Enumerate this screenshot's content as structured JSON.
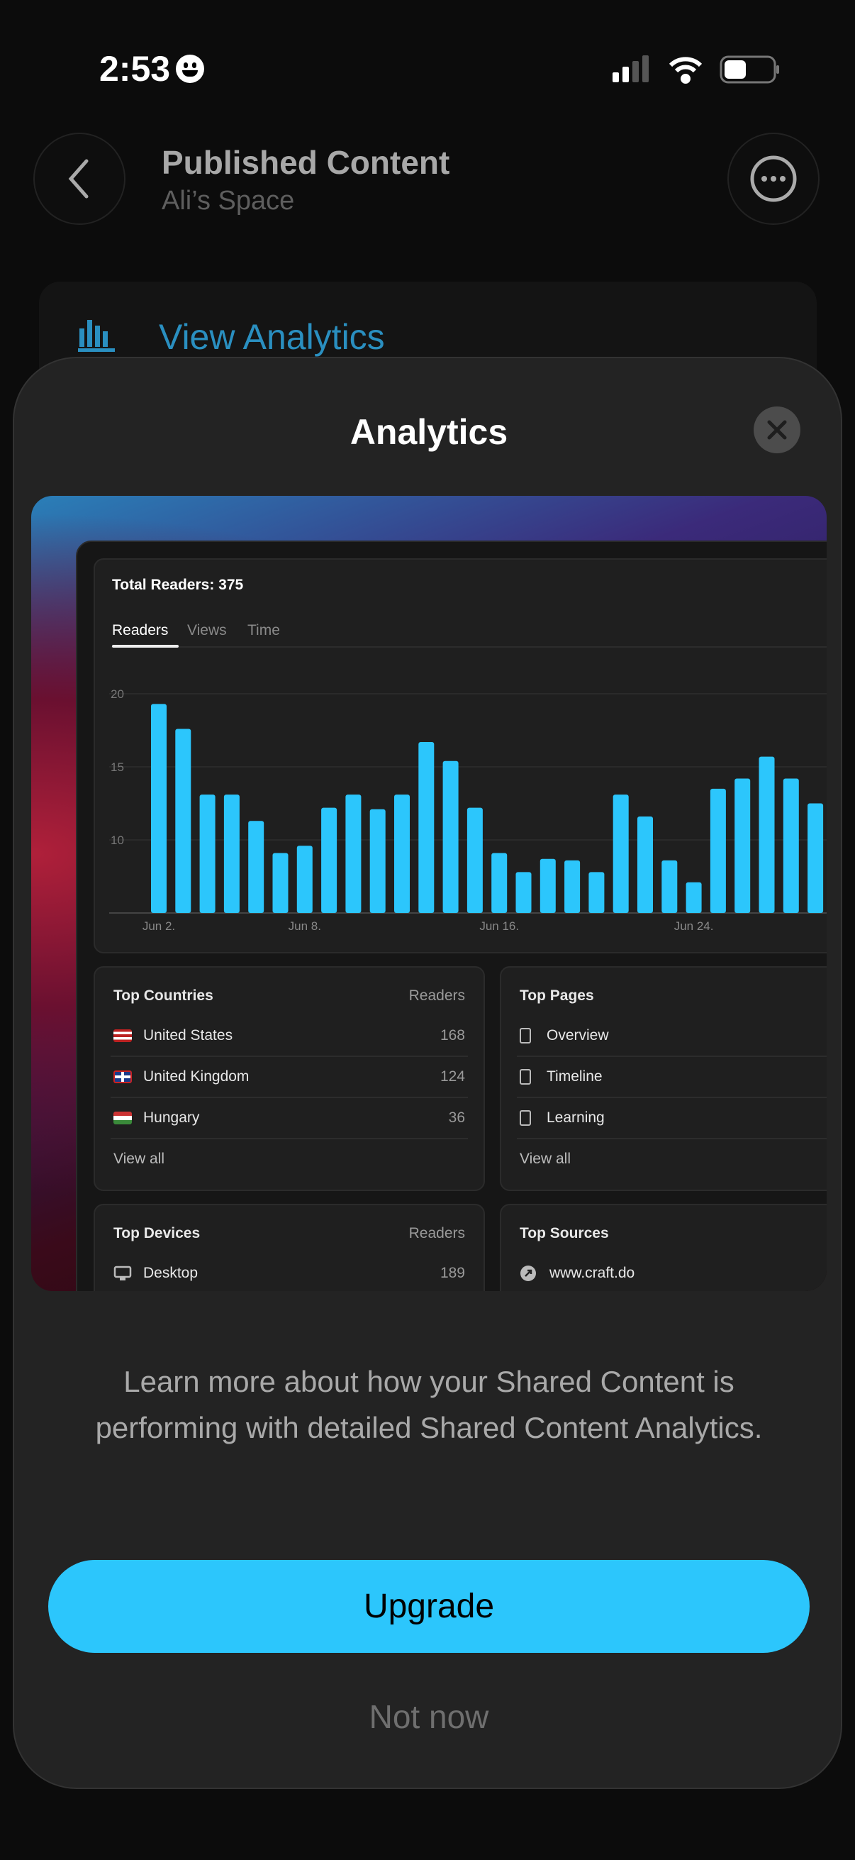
{
  "status_bar": {
    "time": "2:53",
    "icons": [
      "smiley-emoji-icon",
      "cellular-signal-icon",
      "wifi-icon",
      "battery-icon"
    ]
  },
  "header": {
    "title": "Published Content",
    "subtitle": "Ali’s Space",
    "back_icon": "chevron-left-icon",
    "more_icon": "ellipsis-circle-icon"
  },
  "background_card": {
    "label": "View Analytics",
    "icon": "bar-chart-icon",
    "color": "#2a8fc0"
  },
  "sheet": {
    "title": "Analytics",
    "close_icon": "close-x-icon",
    "preview": {
      "total_readers": "Total Readers: 375",
      "tabs": [
        {
          "label": "Readers",
          "active": true
        },
        {
          "label": "Views",
          "active": false
        },
        {
          "label": "Time",
          "active": false
        }
      ],
      "top_countries": {
        "title": "Top Countries",
        "column": "Readers",
        "rows": [
          {
            "name": "United States",
            "value": "168",
            "flag": "us"
          },
          {
            "name": "United Kingdom",
            "value": "124",
            "flag": "uk"
          },
          {
            "name": "Hungary",
            "value": "36",
            "flag": "hu"
          }
        ],
        "view_all": "View all"
      },
      "top_pages": {
        "title": "Top Pages",
        "rows": [
          {
            "name": "Overview"
          },
          {
            "name": "Timeline"
          },
          {
            "name": "Learning"
          }
        ],
        "view_all": "View all"
      },
      "top_devices": {
        "title": "Top Devices",
        "column": "Readers",
        "rows": [
          {
            "name": "Desktop",
            "value": "189"
          }
        ]
      },
      "top_sources": {
        "title": "Top Sources",
        "rows": [
          {
            "name": "www.craft.do"
          }
        ]
      }
    },
    "description": "Learn more about how your Shared Content is performing with detailed Shared Content Analytics.",
    "upgrade_label": "Upgrade",
    "not_now_label": "Not now",
    "accent_color": "#2cc6fc"
  },
  "chart_data": {
    "type": "bar",
    "categories": [
      "Jun 2",
      "Jun 3",
      "Jun 4",
      "Jun 5",
      "Jun 6",
      "Jun 7",
      "Jun 8",
      "Jun 9",
      "Jun 10",
      "Jun 11",
      "Jun 12",
      "Jun 13",
      "Jun 14",
      "Jun 15",
      "Jun 16",
      "Jun 17",
      "Jun 18",
      "Jun 19",
      "Jun 20",
      "Jun 21",
      "Jun 22",
      "Jun 23",
      "Jun 24",
      "Jun 25",
      "Jun 26",
      "Jun 27",
      "Jun 28",
      "Jun 29"
    ],
    "values": [
      19.3,
      17.6,
      13.1,
      13.1,
      11.3,
      9.1,
      9.6,
      12.2,
      13.1,
      12.1,
      13.1,
      16.7,
      15.4,
      12.2,
      9.1,
      7.8,
      8.7,
      8.6,
      7.8,
      13.1,
      11.6,
      8.6,
      7.1,
      13.5,
      14.2,
      15.7,
      14.2,
      12.5
    ],
    "x_tick_labels": [
      "Jun 2.",
      "Jun 8.",
      "Jun 16.",
      "Jun 24."
    ],
    "x_tick_categories": [
      "Jun 2",
      "Jun 8",
      "Jun 16",
      "Jun 24"
    ],
    "y_ticks": [
      "20",
      "15",
      "10"
    ],
    "ylim": [
      5,
      20
    ],
    "grid": true,
    "bar_color": "#2cc6fc"
  }
}
